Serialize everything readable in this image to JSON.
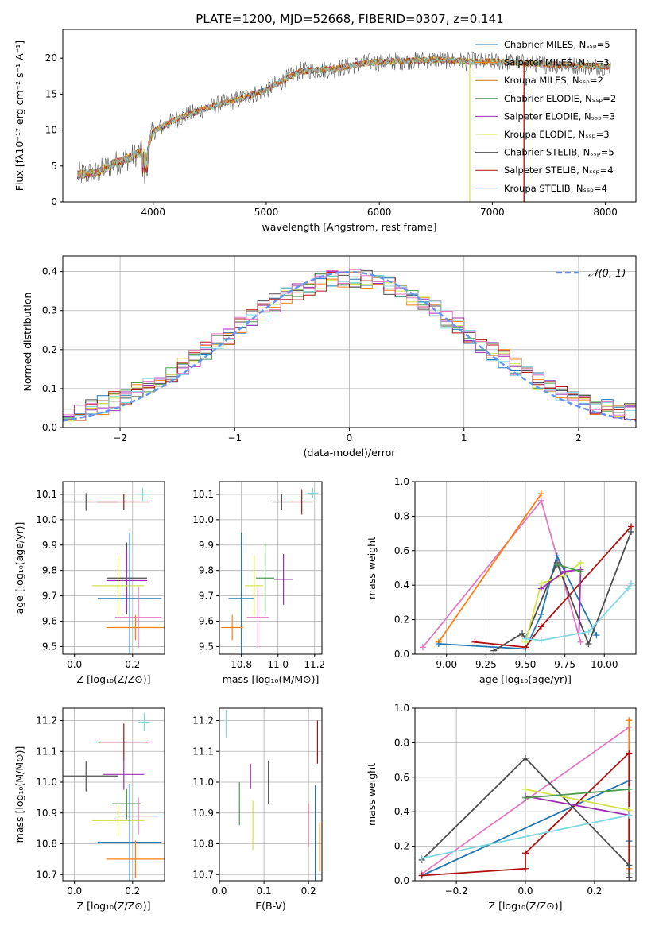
{
  "title": "PLATE=1200, MJD=52668, FIBERID=0307, z=0.141",
  "colors": {
    "grid": "#b0b0b0",
    "gaussian": "#6495ed"
  },
  "chart_data": [
    {
      "type": "line",
      "panel": "spectrum",
      "title": "PLATE=1200, MJD=52668, FIBERID=0307, z=0.141",
      "xlabel": "wavelength [Angstrom, rest frame]",
      "ylabel": "Flux [fλ10⁻¹⁷ erg cm⁻² s⁻¹ A⁻¹]",
      "xlim": [
        3200,
        8270
      ],
      "ylim": [
        0,
        24
      ],
      "xticks": [
        4000,
        5000,
        6000,
        7000,
        8000
      ],
      "yticks": [
        0,
        5,
        10,
        15,
        20
      ],
      "grid": false,
      "legend_position": "top-right",
      "continuum": {
        "x": [
          3330,
          3500,
          3650,
          3800,
          3950,
          4000,
          4200,
          4500,
          4800,
          5000,
          5300,
          5600,
          5900,
          6200,
          6500,
          6800,
          7100,
          7400,
          7700,
          8050
        ],
        "y": [
          3.8,
          4.0,
          5.3,
          6.2,
          7.5,
          9.8,
          11.5,
          13.2,
          14.5,
          15.6,
          18.2,
          18.5,
          19.4,
          19.6,
          19.8,
          19.5,
          19.5,
          19.2,
          19.0,
          18.8
        ]
      },
      "series": [
        {
          "name": "Chabrier MILES, Nₛₛₚ=5",
          "color": "#1f77b4"
        },
        {
          "name": "Salpeter MILES, Nₛₛₚ=3",
          "color": "#ff7f0e"
        },
        {
          "name": "Kroupa MILES, Nₛₛₚ=2",
          "color": "#c87519"
        },
        {
          "name": "Chabrier ELODIE, Nₛₛₚ=2",
          "color": "#4f9a4f"
        },
        {
          "name": "Salpeter ELODIE, Nₛₛₚ=3",
          "color": "#9b30b0"
        },
        {
          "name": "Kroupa ELODIE, Nₛₛₚ=3",
          "color": "#d4e44a"
        },
        {
          "name": "Chabrier STELIB, Nₛₛₚ=5",
          "color": "#4d4d4d"
        },
        {
          "name": "Salpeter STELIB, Nₛₛₚ=4",
          "color": "#b01010"
        },
        {
          "name": "Kroupa STELIB, Nₛₛₚ=4",
          "color": "#80d8e0"
        }
      ],
      "spikes": [
        {
          "x": 6800,
          "color": "#d4e44a"
        },
        {
          "x": 7280,
          "color": "#c87519"
        },
        {
          "x": 7280,
          "color": "#b01010"
        }
      ]
    },
    {
      "type": "histogram",
      "panel": "residuals",
      "xlabel": "(data-model)/error",
      "ylabel": "Normed distribution",
      "xlim": [
        -2.5,
        2.5
      ],
      "ylim": [
        0,
        0.44
      ],
      "xticks": [
        -2,
        -1,
        0,
        1,
        2
      ],
      "yticks": [
        0.0,
        0.1,
        0.2,
        0.3,
        0.4
      ],
      "grid": true,
      "legend_position": "top-right",
      "reference": {
        "name": "𝒩(0, 1)",
        "mean": 0,
        "sigma": 1
      },
      "bin_width": 0.1,
      "bins_start": -2.5,
      "series_colors": [
        "#1f77b4",
        "#ff7f0e",
        "#4f9a4f",
        "#9b30b0",
        "#d4e44a",
        "#4d4d4d",
        "#b01010",
        "#80d8e0",
        "#e377c2"
      ]
    },
    {
      "type": "scatter",
      "panel": "age-vs-Z",
      "xlabel": "Z [log₁₀(Z/Z⊙)]",
      "ylabel": "age  [log₁₀(age/yr)]",
      "xlim": [
        -0.04,
        0.31
      ],
      "ylim": [
        9.47,
        10.15
      ],
      "xticks": [
        0.0,
        0.2
      ],
      "yticks": [
        9.5,
        9.6,
        9.7,
        9.8,
        9.9,
        10.0,
        10.1
      ],
      "grid": true,
      "points": [
        {
          "x": 0.04,
          "y": 10.07,
          "xerr": 0.11,
          "yerr": 0.035,
          "color": "#4d4d4d"
        },
        {
          "x": 0.17,
          "y": 10.07,
          "xerr": 0.09,
          "yerr": 0.03,
          "color": "#b01010"
        },
        {
          "x": 0.235,
          "y": 10.1,
          "xerr": 0.02,
          "yerr": 0.025,
          "color": "#80d8e0"
        },
        {
          "x": 0.18,
          "y": 9.77,
          "xerr": 0.07,
          "yerr": 0.14,
          "color": "#4d4d4d"
        },
        {
          "x": 0.18,
          "y": 9.76,
          "xerr": 0.07,
          "yerr": 0.12,
          "color": "#9b30b0"
        },
        {
          "x": 0.15,
          "y": 9.74,
          "xerr": 0.09,
          "yerr": 0.12,
          "color": "#d4e44a"
        },
        {
          "x": 0.19,
          "y": 9.69,
          "xerr": 0.11,
          "yerr": 0.26,
          "color": "#1f77b4"
        },
        {
          "x": 0.22,
          "y": 9.615,
          "xerr": 0.08,
          "yerr": 0.12,
          "color": "#e377c2"
        },
        {
          "x": 0.21,
          "y": 9.575,
          "xerr": 0.1,
          "yerr": 0.05,
          "color": "#ff7f0e"
        }
      ]
    },
    {
      "type": "scatter",
      "panel": "age-vs-mass",
      "xlabel": "mass [log₁₀(M/M⊙)]",
      "ylabel": "",
      "xlim": [
        10.68,
        11.24
      ],
      "ylim": [
        9.47,
        10.15
      ],
      "xticks": [
        10.8,
        11.0,
        11.2
      ],
      "yticks": [
        9.5,
        9.6,
        9.7,
        9.8,
        9.9,
        10.0,
        10.1
      ],
      "grid": true,
      "points": [
        {
          "x": 11.02,
          "y": 10.07,
          "xerr": 0.05,
          "yerr": 0.03,
          "color": "#4d4d4d"
        },
        {
          "x": 11.13,
          "y": 10.07,
          "xerr": 0.06,
          "yerr": 0.05,
          "color": "#b01010"
        },
        {
          "x": 11.19,
          "y": 10.105,
          "xerr": 0.03,
          "yerr": 0.02,
          "color": "#80d8e0"
        },
        {
          "x": 10.93,
          "y": 9.77,
          "xerr": 0.05,
          "yerr": 0.14,
          "color": "#4f9a4f"
        },
        {
          "x": 11.03,
          "y": 9.765,
          "xerr": 0.05,
          "yerr": 0.1,
          "color": "#9b30b0"
        },
        {
          "x": 10.87,
          "y": 9.74,
          "xerr": 0.05,
          "yerr": 0.12,
          "color": "#d4e44a"
        },
        {
          "x": 10.8,
          "y": 9.69,
          "xerr": 0.07,
          "yerr": 0.26,
          "color": "#1f77b4"
        },
        {
          "x": 10.89,
          "y": 9.615,
          "xerr": 0.06,
          "yerr": 0.12,
          "color": "#e377c2"
        },
        {
          "x": 10.75,
          "y": 9.575,
          "xerr": 0.06,
          "yerr": 0.05,
          "color": "#ff7f0e"
        }
      ]
    },
    {
      "type": "line",
      "panel": "weight-vs-age",
      "xlabel": "age  [log₁₀(age/yr)]",
      "ylabel": "mass weight",
      "xlim": [
        8.8,
        10.2
      ],
      "ylim": [
        0,
        1
      ],
      "xticks": [
        9.0,
        9.25,
        9.5,
        9.75,
        10.0
      ],
      "xtick_labels": [
        "9.00",
        "9.25",
        "9.50",
        "9.75",
        "10.00"
      ],
      "yticks": [
        0.0,
        0.2,
        0.4,
        0.6,
        0.8,
        1.0
      ],
      "grid": true,
      "series": [
        {
          "color": "#e377c2",
          "x": [
            8.85,
            9.6,
            9.85
          ],
          "y": [
            0.04,
            0.89,
            0.07
          ]
        },
        {
          "color": "#ff7f0e",
          "x": [
            8.95,
            9.6
          ],
          "y": [
            0.07,
            0.93
          ]
        },
        {
          "color": "#1f77b4",
          "x": [
            8.95,
            9.5,
            9.6,
            9.7,
            9.95
          ],
          "y": [
            0.06,
            0.03,
            0.23,
            0.57,
            0.11
          ]
        },
        {
          "color": "#b01010",
          "x": [
            9.18,
            9.5,
            9.6,
            10.17
          ],
          "y": [
            0.07,
            0.04,
            0.16,
            0.74
          ]
        },
        {
          "color": "#4d4d4d",
          "x": [
            9.3,
            9.48,
            9.5,
            9.7,
            9.9,
            10.17
          ],
          "y": [
            0.02,
            0.12,
            0.09,
            0.53,
            0.06,
            0.71
          ]
        },
        {
          "color": "#d4e44a",
          "x": [
            9.5,
            9.6,
            9.75,
            9.85
          ],
          "y": [
            0.07,
            0.41,
            0.46,
            0.53
          ]
        },
        {
          "color": "#9b30b0",
          "x": [
            9.6,
            9.75,
            9.85,
            9.84
          ],
          "y": [
            0.38,
            0.48,
            0.49,
            0.14
          ]
        },
        {
          "color": "#4f9a4f",
          "x": [
            9.7,
            9.85
          ],
          "y": [
            0.52,
            0.48
          ]
        },
        {
          "color": "#80d8e0",
          "x": [
            9.5,
            9.6,
            9.9,
            10.15,
            10.17
          ],
          "y": [
            0.09,
            0.08,
            0.13,
            0.38,
            0.41
          ]
        }
      ]
    },
    {
      "type": "scatter",
      "panel": "mass-vs-Z",
      "xlabel": "Z [log₁₀(Z/Z⊙)]",
      "ylabel": "mass [log₁₀(M/M⊙)]",
      "xlim": [
        -0.04,
        0.31
      ],
      "ylim": [
        10.68,
        11.24
      ],
      "xticks": [
        0.0,
        0.2
      ],
      "yticks": [
        10.7,
        10.8,
        10.9,
        11.0,
        11.1,
        11.2
      ],
      "grid": true,
      "points": [
        {
          "x": 0.24,
          "y": 11.195,
          "xerr": 0.02,
          "yerr": 0.03,
          "color": "#80d8e0"
        },
        {
          "x": 0.17,
          "y": 11.13,
          "xerr": 0.09,
          "yerr": 0.06,
          "color": "#b01010"
        },
        {
          "x": 0.04,
          "y": 11.02,
          "xerr": 0.11,
          "yerr": 0.05,
          "color": "#4d4d4d"
        },
        {
          "x": 0.17,
          "y": 11.025,
          "xerr": 0.07,
          "yerr": 0.05,
          "color": "#9b30b0"
        },
        {
          "x": 0.18,
          "y": 10.93,
          "xerr": 0.05,
          "yerr": 0.05,
          "color": "#4f9a4f"
        },
        {
          "x": 0.22,
          "y": 10.89,
          "xerr": 0.07,
          "yerr": 0.06,
          "color": "#e377c2"
        },
        {
          "x": 0.15,
          "y": 10.875,
          "xerr": 0.09,
          "yerr": 0.05,
          "color": "#d4e44a"
        },
        {
          "x": 0.19,
          "y": 10.805,
          "xerr": 0.11,
          "yerr": 0.19,
          "color": "#1f77b4"
        },
        {
          "x": 0.21,
          "y": 10.75,
          "xerr": 0.1,
          "yerr": 0.06,
          "color": "#ff7f0e"
        }
      ]
    },
    {
      "type": "scatter",
      "panel": "mass-vs-EBV",
      "xlabel": "E(B-V)",
      "ylabel": "",
      "xlim": [
        0.0,
        0.23
      ],
      "ylim": [
        10.68,
        11.24
      ],
      "xticks": [
        0.0,
        0.1,
        0.2
      ],
      "yticks": [
        10.7,
        10.8,
        10.9,
        11.0,
        11.1,
        11.2
      ],
      "grid": true,
      "points": [
        {
          "x": 0.015,
          "y": 11.19,
          "xerr": 0,
          "yerr": 0.045,
          "color": "#80d8e0"
        },
        {
          "x": 0.22,
          "y": 11.13,
          "xerr": 0,
          "yerr": 0.07,
          "color": "#b01010"
        },
        {
          "x": 0.11,
          "y": 11.0,
          "xerr": 0,
          "yerr": 0.07,
          "color": "#4d4d4d"
        },
        {
          "x": 0.07,
          "y": 11.02,
          "xerr": 0,
          "yerr": 0.04,
          "color": "#9b30b0"
        },
        {
          "x": 0.045,
          "y": 10.93,
          "xerr": 0,
          "yerr": 0.07,
          "color": "#4f9a4f"
        },
        {
          "x": 0.075,
          "y": 10.86,
          "xerr": 0,
          "yerr": 0.08,
          "color": "#d4e44a"
        },
        {
          "x": 0.2,
          "y": 10.86,
          "xerr": 0,
          "yerr": 0.07,
          "color": "#e377c2"
        },
        {
          "x": 0.215,
          "y": 10.83,
          "xerr": 0,
          "yerr": 0.16,
          "color": "#1f77b4"
        },
        {
          "x": 0.225,
          "y": 10.79,
          "xerr": 0,
          "yerr": 0.08,
          "color": "#ff7f0e"
        }
      ]
    },
    {
      "type": "line",
      "panel": "weight-vs-Z",
      "xlabel": "Z [log₁₀(Z/Z⊙)]",
      "ylabel": "mass weight",
      "xlim": [
        -0.32,
        0.32
      ],
      "ylim": [
        0,
        1
      ],
      "xticks": [
        -0.2,
        0.0,
        0.2
      ],
      "yticks": [
        0.0,
        0.2,
        0.4,
        0.6,
        0.8,
        1.0
      ],
      "grid": true,
      "series": [
        {
          "color": "#e377c2",
          "x": [
            -0.3,
            0.3
          ],
          "y": [
            0.04,
            0.89
          ]
        },
        {
          "color": "#ff7f0e",
          "x": [
            0.3,
            0.3
          ],
          "y": [
            0.07,
            0.93
          ]
        },
        {
          "color": "#1f77b4",
          "x": [
            -0.3,
            0.3,
            0.3
          ],
          "y": [
            0.03,
            0.58,
            0.23
          ]
        },
        {
          "color": "#b01010",
          "x": [
            -0.3,
            0.0,
            0.0,
            0.3,
            0.3
          ],
          "y": [
            0.03,
            0.07,
            0.16,
            0.74,
            0.04
          ]
        },
        {
          "color": "#4d4d4d",
          "x": [
            -0.3,
            0.0,
            0.3,
            0.3
          ],
          "y": [
            0.12,
            0.71,
            0.09,
            0.02
          ]
        },
        {
          "color": "#d4e44a",
          "x": [
            0.0,
            0.3
          ],
          "y": [
            0.53,
            0.41
          ]
        },
        {
          "color": "#9b30b0",
          "x": [
            0.0,
            0.3
          ],
          "y": [
            0.49,
            0.38
          ]
        },
        {
          "color": "#4f9a4f",
          "x": [
            0.0,
            0.3
          ],
          "y": [
            0.48,
            0.53
          ]
        },
        {
          "color": "#80d8e0",
          "x": [
            -0.3,
            0.3
          ],
          "y": [
            0.13,
            0.38
          ]
        }
      ]
    }
  ]
}
